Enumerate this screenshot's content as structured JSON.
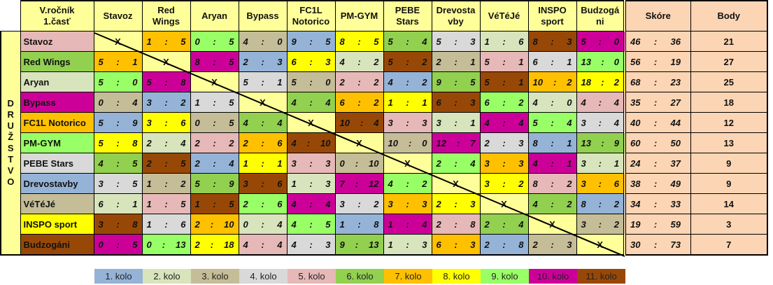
{
  "corner_title": [
    "V.ročník",
    "1.časť"
  ],
  "side_label": "DRUŽSTVO",
  "columns": [
    [
      "Stavoz"
    ],
    [
      "Red",
      "Wings"
    ],
    [
      "Aryan"
    ],
    [
      "Bypass"
    ],
    [
      "FC1L",
      "Notorico"
    ],
    [
      "PM-GYM"
    ],
    [
      "PEBE",
      "Stars"
    ],
    [
      "Drevosta",
      "vby"
    ],
    [
      "VéTéJé"
    ],
    [
      "INSPO",
      "sport"
    ],
    [
      "Budzogá",
      "ni"
    ]
  ],
  "score_header": "Skóre",
  "points_header": "Body",
  "empty_mark": "X",
  "round_colors": {
    "1": "#95b3d7",
    "2": "#d8e4bc",
    "3": "#c4bd97",
    "4": "#d9d9d9",
    "5": "#e6b8b7",
    "6": "#92d050",
    "7": "#ffc000",
    "8": "#ffff00",
    "9": "#99ff66",
    "10": "#cc0099",
    "11": "#984806"
  },
  "rows": [
    {
      "team": "Stavoz",
      "round": 5,
      "cells": [
        null,
        [
          1,
          5,
          7
        ],
        [
          0,
          5,
          9
        ],
        [
          4,
          0,
          3
        ],
        [
          9,
          5,
          1
        ],
        [
          8,
          5,
          8
        ],
        [
          5,
          4,
          6
        ],
        [
          5,
          3,
          4
        ],
        [
          1,
          6,
          2
        ],
        [
          8,
          3,
          11
        ],
        [
          5,
          0,
          10
        ]
      ],
      "score": [
        46,
        36
      ],
      "points": 21
    },
    {
      "team": "Red Wings",
      "round": 6,
      "cells": [
        [
          5,
          1,
          7
        ],
        null,
        [
          8,
          5,
          10
        ],
        [
          2,
          3,
          1
        ],
        [
          6,
          3,
          8
        ],
        [
          4,
          2,
          2
        ],
        [
          5,
          2,
          11
        ],
        [
          2,
          1,
          3
        ],
        [
          5,
          1,
          5
        ],
        [
          6,
          1,
          4
        ],
        [
          13,
          0,
          9
        ]
      ],
      "score": [
        56,
        19
      ],
      "points": 27
    },
    {
      "team": "Aryan",
      "round": 2,
      "cells": [
        [
          5,
          0,
          9
        ],
        [
          5,
          8,
          10
        ],
        null,
        [
          5,
          1,
          4
        ],
        [
          5,
          0,
          3
        ],
        [
          2,
          2,
          5
        ],
        [
          4,
          2,
          1
        ],
        [
          9,
          5,
          6
        ],
        [
          5,
          1,
          11
        ],
        [
          10,
          2,
          7
        ],
        [
          18,
          2,
          8
        ]
      ],
      "score": [
        68,
        23
      ],
      "points": 25
    },
    {
      "team": "Bypass",
      "round": 10,
      "cells": [
        [
          0,
          4,
          3
        ],
        [
          3,
          2,
          1
        ],
        [
          1,
          5,
          4
        ],
        null,
        [
          4,
          4,
          6
        ],
        [
          6,
          2,
          7
        ],
        [
          1,
          1,
          8
        ],
        [
          6,
          3,
          11
        ],
        [
          6,
          2,
          9
        ],
        [
          4,
          0,
          2
        ],
        [
          4,
          4,
          5
        ]
      ],
      "score": [
        35,
        27
      ],
      "points": 18
    },
    {
      "team": "FC1L Notorico",
      "round": 7,
      "cells": [
        [
          5,
          9,
          1
        ],
        [
          3,
          6,
          8
        ],
        [
          0,
          5,
          3
        ],
        [
          4,
          4,
          6
        ],
        null,
        [
          10,
          4,
          11
        ],
        [
          3,
          3,
          5
        ],
        [
          3,
          1,
          2
        ],
        [
          4,
          4,
          10
        ],
        [
          5,
          4,
          9
        ],
        [
          3,
          4,
          4
        ]
      ],
      "score": [
        40,
        44
      ],
      "points": 12
    },
    {
      "team": "PM-GYM",
      "round": 9,
      "cells": [
        [
          5,
          8,
          8
        ],
        [
          2,
          4,
          2
        ],
        [
          2,
          2,
          5
        ],
        [
          2,
          6,
          7
        ],
        [
          4,
          10,
          11
        ],
        null,
        [
          10,
          0,
          3
        ],
        [
          12,
          7,
          10
        ],
        [
          2,
          3,
          4
        ],
        [
          8,
          1,
          1
        ],
        [
          13,
          9,
          6
        ]
      ],
      "score": [
        60,
        50
      ],
      "points": 13
    },
    {
      "team": "PEBE Stars",
      "round": 4,
      "cells": [
        [
          4,
          5,
          6
        ],
        [
          2,
          5,
          11
        ],
        [
          2,
          4,
          1
        ],
        [
          1,
          1,
          8
        ],
        [
          3,
          3,
          5
        ],
        [
          0,
          10,
          3
        ],
        null,
        [
          2,
          4,
          9
        ],
        [
          3,
          3,
          7
        ],
        [
          4,
          1,
          10
        ],
        [
          3,
          1,
          2
        ]
      ],
      "score": [
        24,
        37
      ],
      "points": 9
    },
    {
      "team": "Drevostavby",
      "round": 1,
      "cells": [
        [
          3,
          5,
          4
        ],
        [
          1,
          2,
          3
        ],
        [
          5,
          9,
          6
        ],
        [
          3,
          6,
          11
        ],
        [
          1,
          3,
          2
        ],
        [
          7,
          12,
          10
        ],
        [
          4,
          2,
          9
        ],
        null,
        [
          3,
          2,
          8
        ],
        [
          8,
          2,
          5
        ],
        [
          3,
          6,
          7
        ]
      ],
      "score": [
        38,
        49
      ],
      "points": 9
    },
    {
      "team": "VéTéJé",
      "round": 3,
      "cells": [
        [
          6,
          1,
          2
        ],
        [
          1,
          5,
          5
        ],
        [
          1,
          5,
          11
        ],
        [
          2,
          6,
          9
        ],
        [
          4,
          4,
          10
        ],
        [
          3,
          2,
          4
        ],
        [
          3,
          3,
          7
        ],
        [
          2,
          3,
          8
        ],
        null,
        [
          4,
          2,
          6
        ],
        [
          8,
          2,
          1
        ]
      ],
      "score": [
        34,
        33
      ],
      "points": 14
    },
    {
      "team": "INSPO sport",
      "round": 8,
      "cells": [
        [
          3,
          8,
          11
        ],
        [
          1,
          6,
          4
        ],
        [
          2,
          10,
          7
        ],
        [
          0,
          4,
          2
        ],
        [
          4,
          5,
          9
        ],
        [
          1,
          8,
          1
        ],
        [
          1,
          4,
          10
        ],
        [
          2,
          8,
          5
        ],
        [
          2,
          4,
          6
        ],
        null,
        [
          3,
          2,
          3
        ]
      ],
      "score": [
        19,
        59
      ],
      "points": 3
    },
    {
      "team": "Budzogáni",
      "round": 11,
      "cells": [
        [
          0,
          5,
          10
        ],
        [
          0,
          13,
          9
        ],
        [
          2,
          18,
          8
        ],
        [
          4,
          4,
          5
        ],
        [
          4,
          3,
          4
        ],
        [
          9,
          13,
          6
        ],
        [
          1,
          3,
          2
        ],
        [
          6,
          3,
          7
        ],
        [
          2,
          8,
          1
        ],
        [
          2,
          3,
          3
        ],
        null
      ],
      "score": [
        30,
        73
      ],
      "points": 7
    }
  ],
  "legend": [
    "1. kolo",
    "2. kolo",
    "3. kolo",
    "4. kolo",
    "5. kolo",
    "6. kolo",
    "7. kolo",
    "8. kolo",
    "9. kolo",
    "10. kolo",
    "11. kolo"
  ]
}
